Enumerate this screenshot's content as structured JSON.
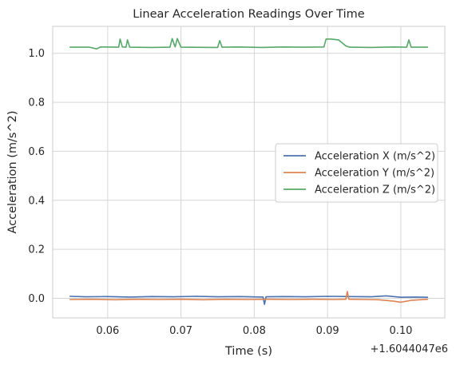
{
  "chart_data": {
    "type": "line",
    "title": "Linear Acceleration Readings Over Time",
    "xlabel": "Time (s)",
    "ylabel": "Acceleration (m/s^2)",
    "x_offset_label": "+1.6044047e6",
    "xlim": [
      0.0525,
      0.106
    ],
    "ylim": [
      -0.08,
      1.11
    ],
    "x_ticks": [
      0.06,
      0.07,
      0.08,
      0.09,
      0.1
    ],
    "x_tick_labels": [
      "0.06",
      "0.07",
      "0.08",
      "0.09",
      "0.10"
    ],
    "y_ticks": [
      0.0,
      0.2,
      0.4,
      0.6,
      0.8,
      1.0
    ],
    "y_tick_labels": [
      "0.0",
      "0.2",
      "0.4",
      "0.6",
      "0.8",
      "1.0"
    ],
    "grid": true,
    "legend_position": "center-right",
    "series": [
      {
        "name": "Acceleration X (m/s^2)",
        "color": "#4c72b0",
        "x": [
          0.0548,
          0.057,
          0.06,
          0.063,
          0.066,
          0.069,
          0.072,
          0.075,
          0.078,
          0.0812,
          0.0814,
          0.0816,
          0.084,
          0.087,
          0.09,
          0.093,
          0.096,
          0.098,
          0.1,
          0.102,
          0.1037
        ],
        "y": [
          0.008,
          0.006,
          0.007,
          0.005,
          0.007,
          0.006,
          0.008,
          0.006,
          0.007,
          0.005,
          -0.025,
          0.006,
          0.007,
          0.006,
          0.008,
          0.007,
          0.006,
          0.01,
          0.004,
          0.005,
          0.004
        ]
      },
      {
        "name": "Acceleration Y (m/s^2)",
        "color": "#dd8452",
        "x": [
          0.0548,
          0.058,
          0.061,
          0.064,
          0.067,
          0.07,
          0.073,
          0.076,
          0.079,
          0.082,
          0.085,
          0.088,
          0.091,
          0.0925,
          0.0927,
          0.0929,
          0.095,
          0.097,
          0.099,
          0.1,
          0.1015,
          0.1037
        ],
        "y": [
          -0.005,
          -0.004,
          -0.006,
          -0.004,
          -0.005,
          -0.004,
          -0.006,
          -0.004,
          -0.005,
          -0.004,
          -0.005,
          -0.004,
          -0.005,
          -0.004,
          0.028,
          -0.004,
          -0.005,
          -0.006,
          -0.012,
          -0.016,
          -0.008,
          -0.004
        ]
      },
      {
        "name": "Acceleration Z (m/s^2)",
        "color": "#55a868",
        "x": [
          0.0548,
          0.0575,
          0.0585,
          0.059,
          0.0615,
          0.0617,
          0.062,
          0.0625,
          0.0627,
          0.063,
          0.066,
          0.0685,
          0.0688,
          0.0692,
          0.0695,
          0.07,
          0.075,
          0.0753,
          0.0756,
          0.078,
          0.081,
          0.084,
          0.0865,
          0.0895,
          0.0898,
          0.0905,
          0.0915,
          0.0925,
          0.093,
          0.096,
          0.099,
          0.1008,
          0.1011,
          0.1014,
          0.1037
        ],
        "y": [
          1.025,
          1.025,
          1.018,
          1.026,
          1.025,
          1.058,
          1.026,
          1.025,
          1.055,
          1.025,
          1.024,
          1.025,
          1.06,
          1.026,
          1.06,
          1.025,
          1.024,
          1.052,
          1.025,
          1.026,
          1.024,
          1.026,
          1.025,
          1.026,
          1.058,
          1.058,
          1.055,
          1.03,
          1.025,
          1.024,
          1.026,
          1.025,
          1.055,
          1.025,
          1.025
        ]
      }
    ]
  }
}
